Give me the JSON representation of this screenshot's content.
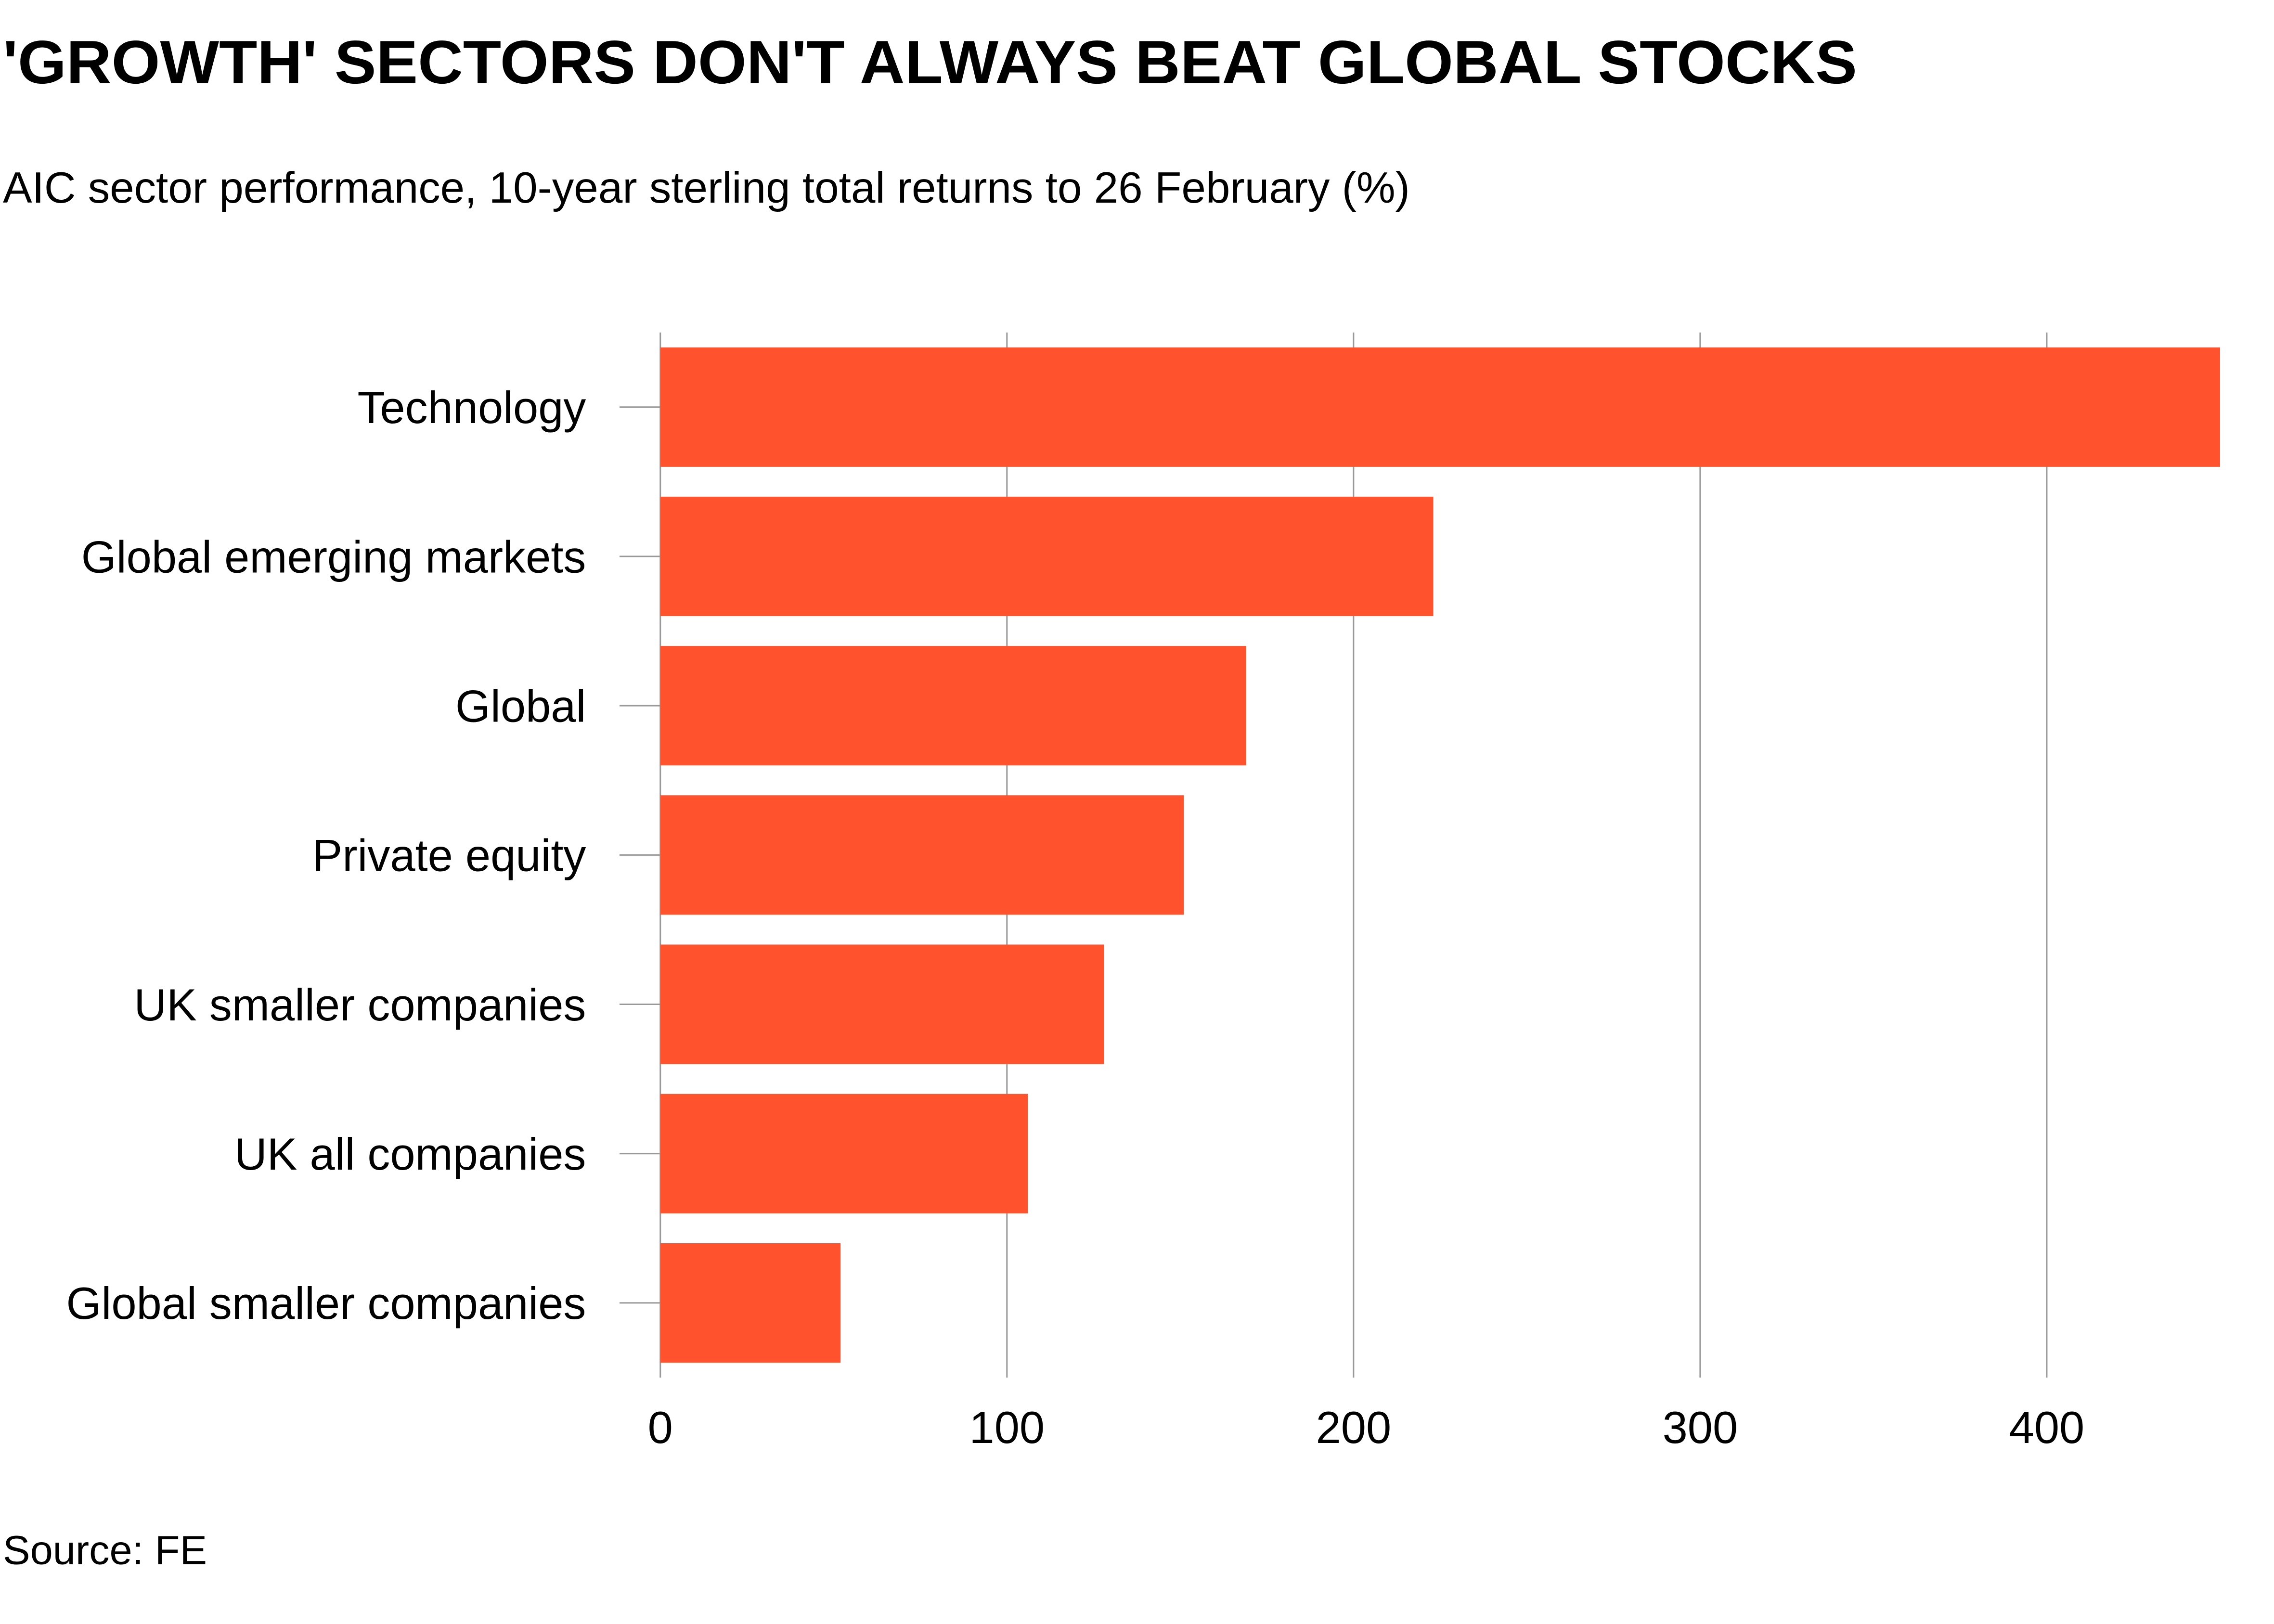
{
  "chart_data": {
    "type": "hbar",
    "title": "'GROWTH' SECTORS DON'T ALWAYS BEAT GLOBAL STOCKS",
    "subtitle": "AIC sector performance, 10-year sterling total returns to 26 February (%)",
    "source": "Source: FE",
    "categories": [
      "Technology",
      "Global emerging markets",
      "Global",
      "Private equity",
      "UK smaller companies",
      "UK all companies",
      "Global smaller companies"
    ],
    "values": [
      450,
      223,
      169,
      151,
      128,
      106,
      52
    ],
    "color": "#ff522d",
    "xlim": [
      0,
      450
    ],
    "xticks": [
      0,
      100,
      200,
      300,
      400
    ],
    "grid": true
  }
}
